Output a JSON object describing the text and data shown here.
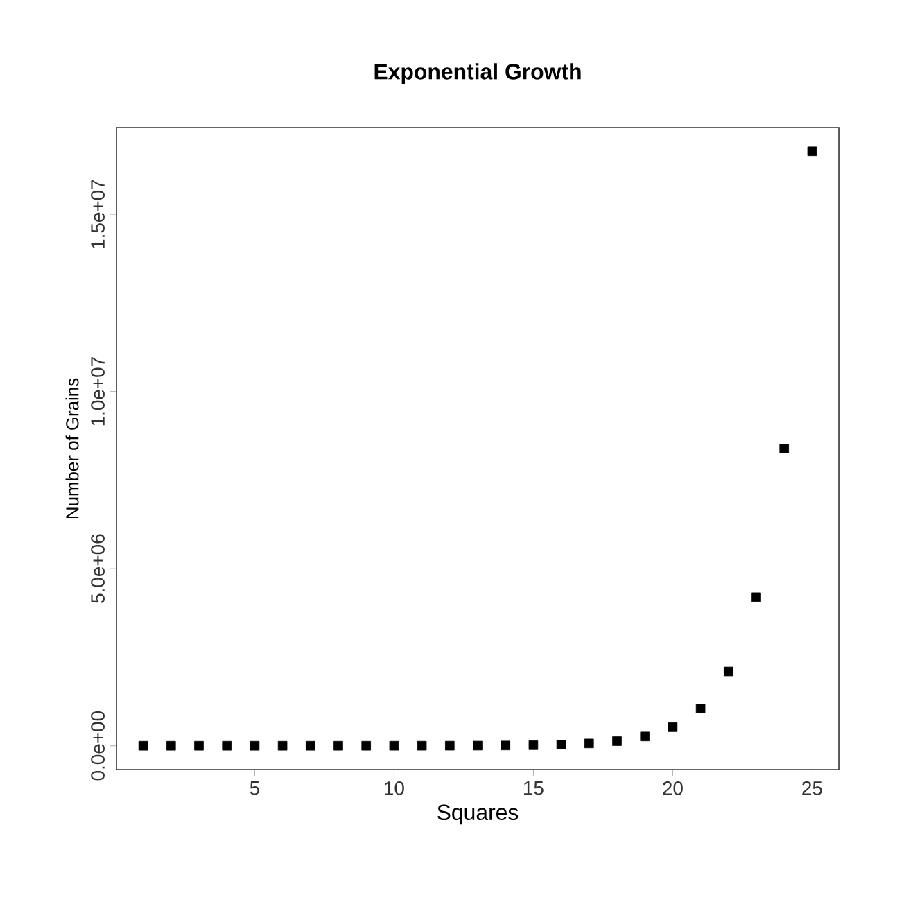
{
  "chart_data": {
    "type": "scatter",
    "title": "Exponential Growth",
    "xlabel": "Squares",
    "ylabel": "Number of Grains",
    "x": [
      1,
      2,
      3,
      4,
      5,
      6,
      7,
      8,
      9,
      10,
      11,
      12,
      13,
      14,
      15,
      16,
      17,
      18,
      19,
      20,
      21,
      22,
      23,
      24,
      25
    ],
    "values": [
      1,
      2,
      4,
      8,
      16,
      32,
      64,
      128,
      256,
      512,
      1024,
      2048,
      4096,
      8192,
      16384,
      32768,
      65536,
      131072,
      262144,
      524288,
      1048576,
      2097152,
      4194304,
      8388608,
      16777216
    ],
    "color": "#000000",
    "marker": "square",
    "xlim": [
      0.04,
      25.96
    ],
    "ylim": [
      -671089,
      17448305
    ],
    "xticks": [
      5,
      10,
      15,
      20,
      25
    ],
    "yticks": [
      {
        "value": 0,
        "label": "0.0e+00"
      },
      {
        "value": 5000000,
        "label": "5.0e+06"
      },
      {
        "value": 10000000,
        "label": "1.0e+07"
      },
      {
        "value": 15000000,
        "label": "1.5e+07"
      }
    ]
  }
}
